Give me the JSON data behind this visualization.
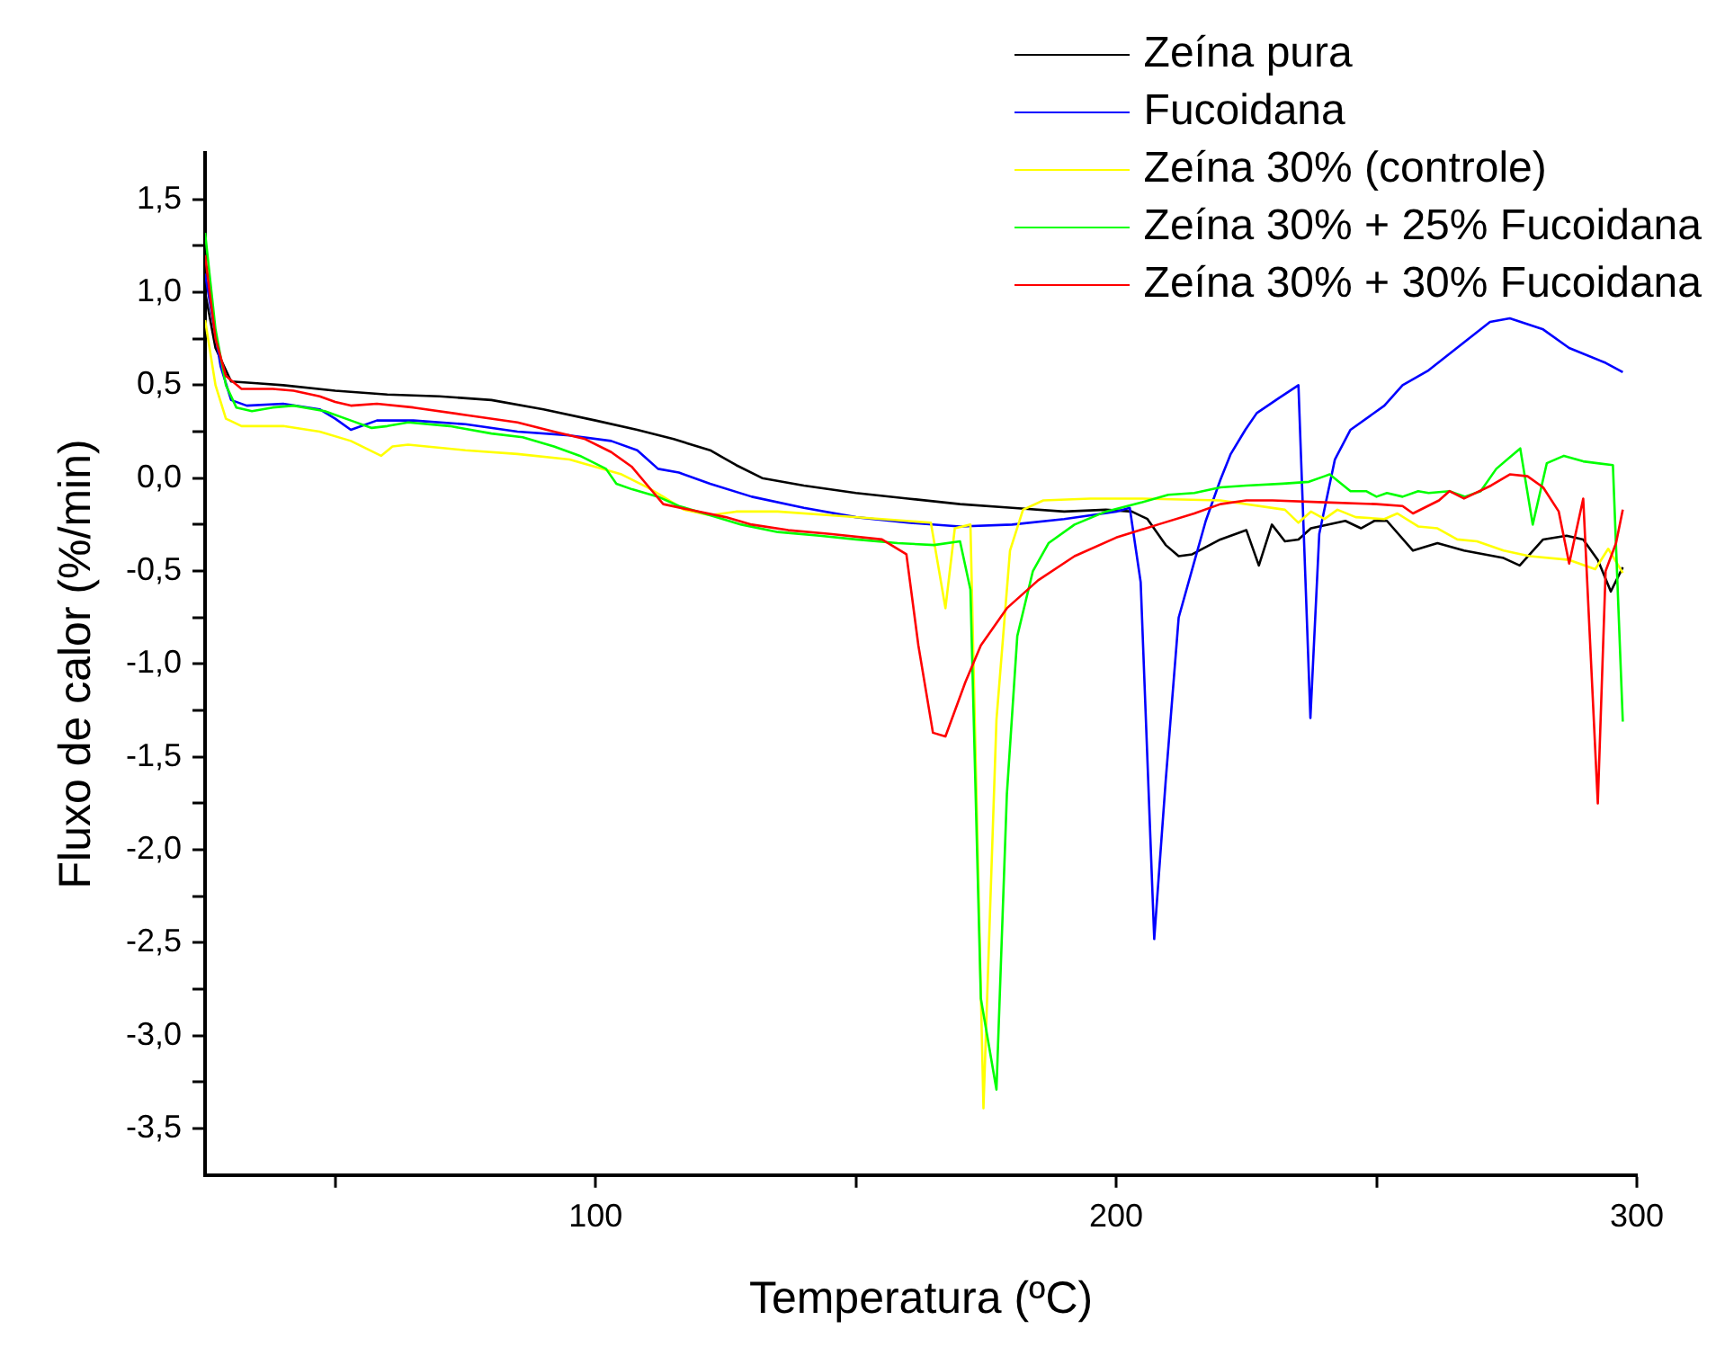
{
  "chart_data": {
    "type": "line",
    "xlabel": "Temperatura (ºC)",
    "ylabel": "Fluxo de calor (%/min)",
    "xlim": [
      25,
      300
    ],
    "ylim": [
      -3.75,
      1.75
    ],
    "xticks": [
      {
        "value": 50,
        "label": null
      },
      100,
      {
        "value": 150,
        "label": null
      },
      200,
      {
        "value": 250,
        "label": null
      },
      300
    ],
    "yticks": [
      {
        "value": -3.5,
        "label": "-3,5"
      },
      {
        "value": -3.25,
        "label": null
      },
      {
        "value": -3,
        "label": "-3,0"
      },
      {
        "value": -2.75,
        "label": null
      },
      {
        "value": -2.5,
        "label": "-2,5"
      },
      {
        "value": -2.25,
        "label": null
      },
      {
        "value": -2,
        "label": "-2,0"
      },
      {
        "value": -1.75,
        "label": null
      },
      {
        "value": -1.5,
        "label": "-1,5"
      },
      {
        "value": -1.25,
        "label": null
      },
      {
        "value": -1,
        "label": "-1,0"
      },
      {
        "value": -0.75,
        "label": null
      },
      {
        "value": -0.5,
        "label": "-0,5"
      },
      {
        "value": -0.25,
        "label": null
      },
      {
        "value": 0,
        "label": "0,0"
      },
      {
        "value": 0.25,
        "label": null
      },
      {
        "value": 0.5,
        "label": "0,5"
      },
      {
        "value": 0.75,
        "label": null
      },
      {
        "value": 1,
        "label": "1,0"
      },
      {
        "value": 1.25,
        "label": null
      },
      {
        "value": 1.5,
        "label": "1,5"
      }
    ],
    "grid": false,
    "legend": "top right",
    "marker": "none",
    "line_style": "solid",
    "series": [
      {
        "name": "Zeína pura",
        "color": "#000000",
        "x": [
          25,
          27,
          30,
          35,
          40,
          50,
          60,
          70,
          80,
          90,
          100,
          108,
          115,
          122,
          127,
          132,
          140,
          150,
          160,
          170,
          180,
          190,
          198,
          203,
          206,
          209.5,
          212,
          214.6,
          220,
          225,
          227.4,
          229.9,
          232.4,
          235,
          237.4,
          244,
          247,
          249.6,
          252,
          257,
          261.7,
          266.8,
          274.4,
          277.5,
          282,
          286.5,
          289.7,
          292.5,
          295,
          297.3
        ],
        "values": [
          1.0,
          0.7,
          0.52,
          0.51,
          0.5,
          0.47,
          0.45,
          0.44,
          0.42,
          0.37,
          0.31,
          0.26,
          0.21,
          0.15,
          0.07,
          0.0,
          -0.04,
          -0.08,
          -0.11,
          -0.14,
          -0.16,
          -0.18,
          -0.17,
          -0.18,
          -0.22,
          -0.36,
          -0.42,
          -0.41,
          -0.33,
          -0.28,
          -0.47,
          -0.25,
          -0.34,
          -0.33,
          -0.27,
          -0.23,
          -0.27,
          -0.23,
          -0.23,
          -0.39,
          -0.35,
          -0.39,
          -0.43,
          -0.47,
          -0.33,
          -0.31,
          -0.33,
          -0.44,
          -0.61,
          -0.48
        ]
      },
      {
        "name": "Fucoidana",
        "color": "#0000ff",
        "x": [
          25,
          28,
          30,
          33,
          40,
          47,
          50,
          53,
          58,
          65,
          75,
          85,
          95,
          103,
          108,
          112,
          116,
          122,
          130,
          140,
          150,
          160,
          170,
          180,
          190,
          200,
          202.6,
          204.7,
          207.3,
          209.5,
          212,
          215,
          217.2,
          220,
          222,
          224.8,
          227,
          231.2,
          235,
          237.3,
          239,
          242,
          245,
          251.5,
          255,
          260,
          266.8,
          271.8,
          275.6,
          282,
          287,
          294,
          297.3
        ],
        "values": [
          1.1,
          0.6,
          0.42,
          0.39,
          0.4,
          0.37,
          0.32,
          0.26,
          0.31,
          0.31,
          0.29,
          0.25,
          0.23,
          0.2,
          0.15,
          0.05,
          0.03,
          -0.03,
          -0.1,
          -0.16,
          -0.21,
          -0.24,
          -0.26,
          -0.25,
          -0.22,
          -0.18,
          -0.16,
          -0.56,
          -2.48,
          -1.63,
          -0.75,
          -0.45,
          -0.23,
          -0.01,
          0.13,
          0.26,
          0.35,
          0.43,
          0.5,
          -1.29,
          -0.3,
          0.1,
          0.26,
          0.39,
          0.5,
          0.58,
          0.73,
          0.84,
          0.86,
          0.8,
          0.7,
          0.62,
          0.57
        ]
      },
      {
        "name": "Zeína 30% (controle)",
        "color": "#ffff00",
        "x": [
          25,
          27,
          29,
          32,
          40,
          47,
          53,
          58.8,
          61,
          64,
          75,
          85,
          95,
          100,
          105,
          110,
          113,
          117,
          122,
          127,
          135,
          145,
          155,
          164.4,
          167.2,
          169,
          172,
          174.5,
          177,
          179.6,
          182.1,
          186,
          195,
          205,
          220,
          232.4,
          235,
          237.4,
          240,
          242.5,
          246,
          251.5,
          254,
          258,
          261.7,
          265.5,
          269.3,
          274.4,
          279.4,
          287,
          292,
          294.5,
          297.3
        ],
        "values": [
          0.85,
          0.5,
          0.32,
          0.28,
          0.28,
          0.25,
          0.2,
          0.12,
          0.17,
          0.18,
          0.15,
          0.13,
          0.1,
          0.06,
          0.02,
          -0.05,
          -0.1,
          -0.17,
          -0.2,
          -0.18,
          -0.18,
          -0.2,
          -0.22,
          -0.24,
          -0.7,
          -0.27,
          -0.25,
          -3.39,
          -1.3,
          -0.39,
          -0.17,
          -0.12,
          -0.11,
          -0.11,
          -0.12,
          -0.17,
          -0.24,
          -0.18,
          -0.22,
          -0.17,
          -0.21,
          -0.22,
          -0.19,
          -0.26,
          -0.27,
          -0.33,
          -0.34,
          -0.39,
          -0.42,
          -0.44,
          -0.49,
          -0.38,
          -0.51
        ]
      },
      {
        "name": "Zeína 30% + 25% Fucoidana",
        "color": "#00ff00",
        "x": [
          25,
          27,
          29,
          31,
          34,
          38,
          42,
          48,
          53,
          57,
          60,
          64,
          72,
          80,
          86,
          92,
          97,
          102,
          104,
          107,
          112,
          116,
          122,
          128,
          135,
          143,
          150,
          158,
          165,
          170,
          172,
          174,
          177,
          179,
          181,
          184,
          187,
          192,
          198,
          205,
          210,
          215,
          220,
          225,
          232,
          237,
          240,
          241,
          245,
          248,
          250,
          252,
          255,
          258,
          260,
          264,
          267,
          270,
          273,
          277.6,
          280,
          282.7,
          286,
          289.7,
          295.4,
          297.3
        ],
        "values": [
          1.32,
          0.8,
          0.5,
          0.38,
          0.36,
          0.38,
          0.39,
          0.36,
          0.31,
          0.27,
          0.28,
          0.3,
          0.28,
          0.24,
          0.22,
          0.17,
          0.12,
          0.05,
          -0.03,
          -0.06,
          -0.1,
          -0.15,
          -0.2,
          -0.25,
          -0.29,
          -0.31,
          -0.33,
          -0.35,
          -0.36,
          -0.34,
          -0.6,
          -2.8,
          -3.29,
          -1.7,
          -0.85,
          -0.5,
          -0.35,
          -0.25,
          -0.18,
          -0.13,
          -0.09,
          -0.08,
          -0.05,
          -0.04,
          -0.03,
          -0.02,
          0.01,
          0.02,
          -0.07,
          -0.07,
          -0.1,
          -0.08,
          -0.1,
          -0.07,
          -0.08,
          -0.07,
          -0.1,
          -0.07,
          0.05,
          0.16,
          -0.25,
          0.08,
          0.12,
          0.09,
          0.07,
          -1.31
        ]
      },
      {
        "name": "Zeína 30% + 30% Fucoidana",
        "color": "#ff0000",
        "x": [
          25,
          27,
          29,
          32,
          38,
          42,
          47,
          50,
          53,
          58,
          65,
          75,
          85,
          92,
          98,
          103,
          107,
          110,
          113,
          118,
          125,
          130,
          137,
          145,
          155,
          159.7,
          162,
          164.8,
          167.2,
          171,
          174,
          179,
          185,
          192,
          200,
          208,
          215,
          220,
          225,
          230,
          240,
          250,
          255,
          257,
          262,
          264,
          266.8,
          272,
          275.6,
          279,
          282,
          285,
          287,
          289.7,
          292.5,
          294,
          296,
          297.3
        ],
        "values": [
          1.2,
          0.75,
          0.55,
          0.48,
          0.48,
          0.47,
          0.44,
          0.41,
          0.39,
          0.4,
          0.38,
          0.34,
          0.3,
          0.25,
          0.21,
          0.14,
          0.06,
          -0.04,
          -0.14,
          -0.17,
          -0.21,
          -0.25,
          -0.28,
          -0.3,
          -0.33,
          -0.41,
          -0.9,
          -1.37,
          -1.39,
          -1.1,
          -0.9,
          -0.7,
          -0.55,
          -0.42,
          -0.32,
          -0.25,
          -0.19,
          -0.14,
          -0.12,
          -0.12,
          -0.13,
          -0.14,
          -0.15,
          -0.19,
          -0.12,
          -0.07,
          -0.11,
          -0.04,
          0.02,
          0.01,
          -0.05,
          -0.18,
          -0.46,
          -0.11,
          -1.75,
          -0.5,
          -0.35,
          -0.17
        ]
      }
    ]
  }
}
